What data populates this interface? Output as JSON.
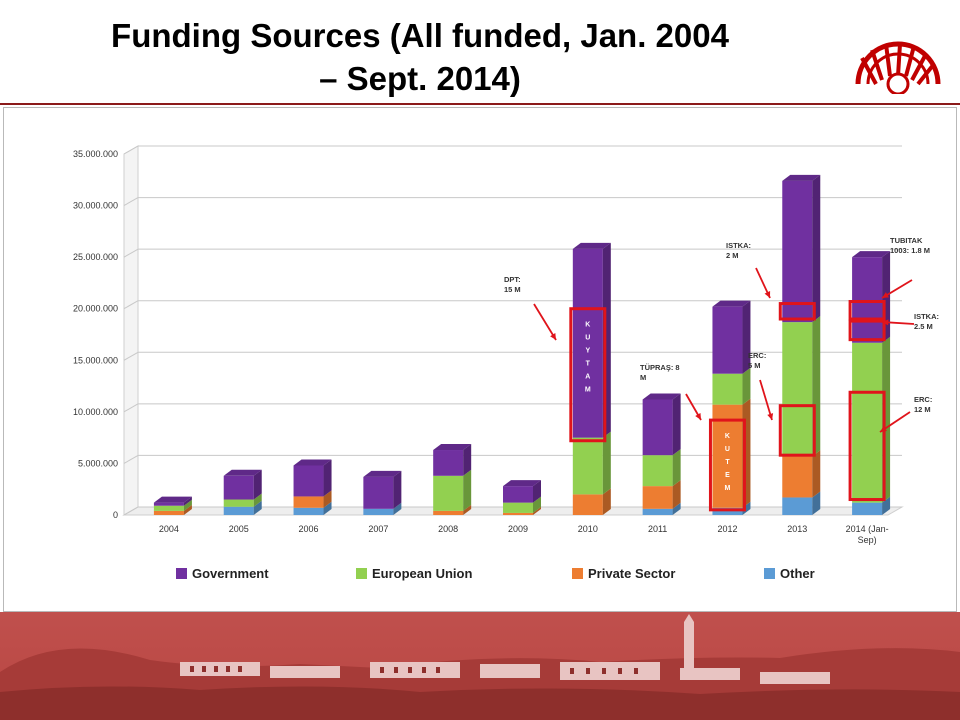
{
  "slide": {
    "title": "Funding Sources (All funded, Jan. 2004 – Sept. 2014)"
  },
  "colors": {
    "government": "#7030a0",
    "european_union": "#92d050",
    "private_sector": "#ed7d31",
    "other": "#5b9bd5",
    "highlight": "#e0141b",
    "brand": "#c00000"
  },
  "chart_data": {
    "type": "bar",
    "stacked": true,
    "three_d": true,
    "categories": [
      "2004",
      "2005",
      "2006",
      "2007",
      "2008",
      "2009",
      "2010",
      "2011",
      "2012",
      "2013",
      "2014 (Jan-Sep)"
    ],
    "series": [
      {
        "name": "Other",
        "color_key": "other",
        "values": [
          0,
          800000,
          700000,
          600000,
          0,
          0,
          0,
          600000,
          700000,
          1700000,
          1200000
        ]
      },
      {
        "name": "Private Sector",
        "color_key": "private_sector",
        "values": [
          400000,
          0,
          1100000,
          0,
          400000,
          200000,
          2000000,
          2200000,
          10000000,
          4000000,
          0
        ]
      },
      {
        "name": "European Union",
        "color_key": "european_union",
        "values": [
          500000,
          700000,
          0,
          0,
          3400000,
          1000000,
          5500000,
          3000000,
          3000000,
          13000000,
          15500000
        ]
      },
      {
        "name": "Government",
        "color_key": "government",
        "values": [
          300000,
          2300000,
          3000000,
          3100000,
          2500000,
          1600000,
          18300000,
          5400000,
          6500000,
          13700000,
          8300000
        ]
      }
    ],
    "ylim": [
      0,
      35000000
    ],
    "yticks": [
      "0",
      "5.000.000",
      "10.000.000",
      "15.000.000",
      "20.000.000",
      "25.000.000",
      "30.000.000",
      "35.000.000"
    ],
    "grid": true,
    "legend": {
      "position": "bottom",
      "entries": [
        "Government",
        "European Union",
        "Private Sector",
        "Other"
      ]
    },
    "annotations": [
      {
        "lines": [
          "DPT:",
          "15 M"
        ],
        "category": "2010",
        "box_range": [
          7200000,
          20000000
        ],
        "letters": "KUYTAM"
      },
      {
        "lines": [
          "TÜPRAŞ: 8",
          "M"
        ],
        "category": "2012",
        "box_range": [
          500000,
          9200000
        ],
        "letters": "KUTEM"
      },
      {
        "lines": [
          "ISTKA:",
          "2 M"
        ],
        "category": "2013",
        "box_range": [
          19000000,
          20500000
        ],
        "letters": ""
      },
      {
        "lines": [
          "ERC:",
          "5 M"
        ],
        "category": "2013",
        "box_range": [
          5800000,
          10600000
        ],
        "letters": ""
      },
      {
        "lines": [
          "TUBITAK",
          "1003: 1.8 M"
        ],
        "category": "2014 (Jan-Sep)",
        "box_range": [
          19000000,
          20700000
        ],
        "letters": ""
      },
      {
        "lines": [
          "ISTKA:",
          "2.5 M"
        ],
        "category": "2014 (Jan-Sep)",
        "box_range": [
          17000000,
          18800000
        ],
        "letters": ""
      },
      {
        "lines": [
          "ERC:",
          "12 M"
        ],
        "category": "2014 (Jan-Sep)",
        "box_range": [
          1500000,
          11900000
        ],
        "letters": ""
      }
    ]
  }
}
